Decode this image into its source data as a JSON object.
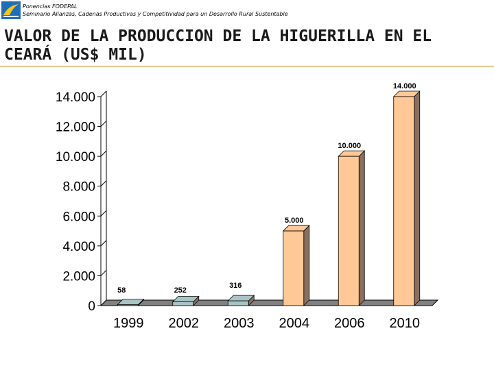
{
  "header": {
    "line1": "Ponencias FODEPAL",
    "line2": "Seminario Alianzas, Cadenas Productivas y Competitividad para un Desarrollo Rural Sustentable"
  },
  "slide": {
    "title": "VALOR DE LA PRODUCCION DE LA HIGUERILLA EN EL CEARÁ (US$ MIL)"
  },
  "colors": {
    "accent_rule": "#b8860b",
    "bar_front_small": "#a9c4c4",
    "bar_front_large": "#ffc896",
    "bar_side": "#8b6f5e",
    "floor": "#808080"
  },
  "chart_data": {
    "type": "bar",
    "title": "VALOR DE LA PRODUCCION DE LA HIGUERILLA EN EL CEARÁ (US$ MIL)",
    "categories": [
      "1999",
      "2002",
      "2003",
      "2004",
      "2006",
      "2010"
    ],
    "values": [
      58,
      252,
      316,
      5000,
      10000,
      14000
    ],
    "data_labels": [
      "58",
      "252",
      "316",
      "5.000",
      "10.000",
      "14.000"
    ],
    "ylim": [
      0,
      14000
    ],
    "yticks": [
      0,
      2000,
      4000,
      6000,
      8000,
      10000,
      12000,
      14000
    ],
    "ytick_labels": [
      "0",
      "2.000",
      "4.000",
      "6.000",
      "8.000",
      "10.000",
      "12.000",
      "14.000"
    ],
    "xlabel": "",
    "ylabel": "",
    "grid": false
  }
}
